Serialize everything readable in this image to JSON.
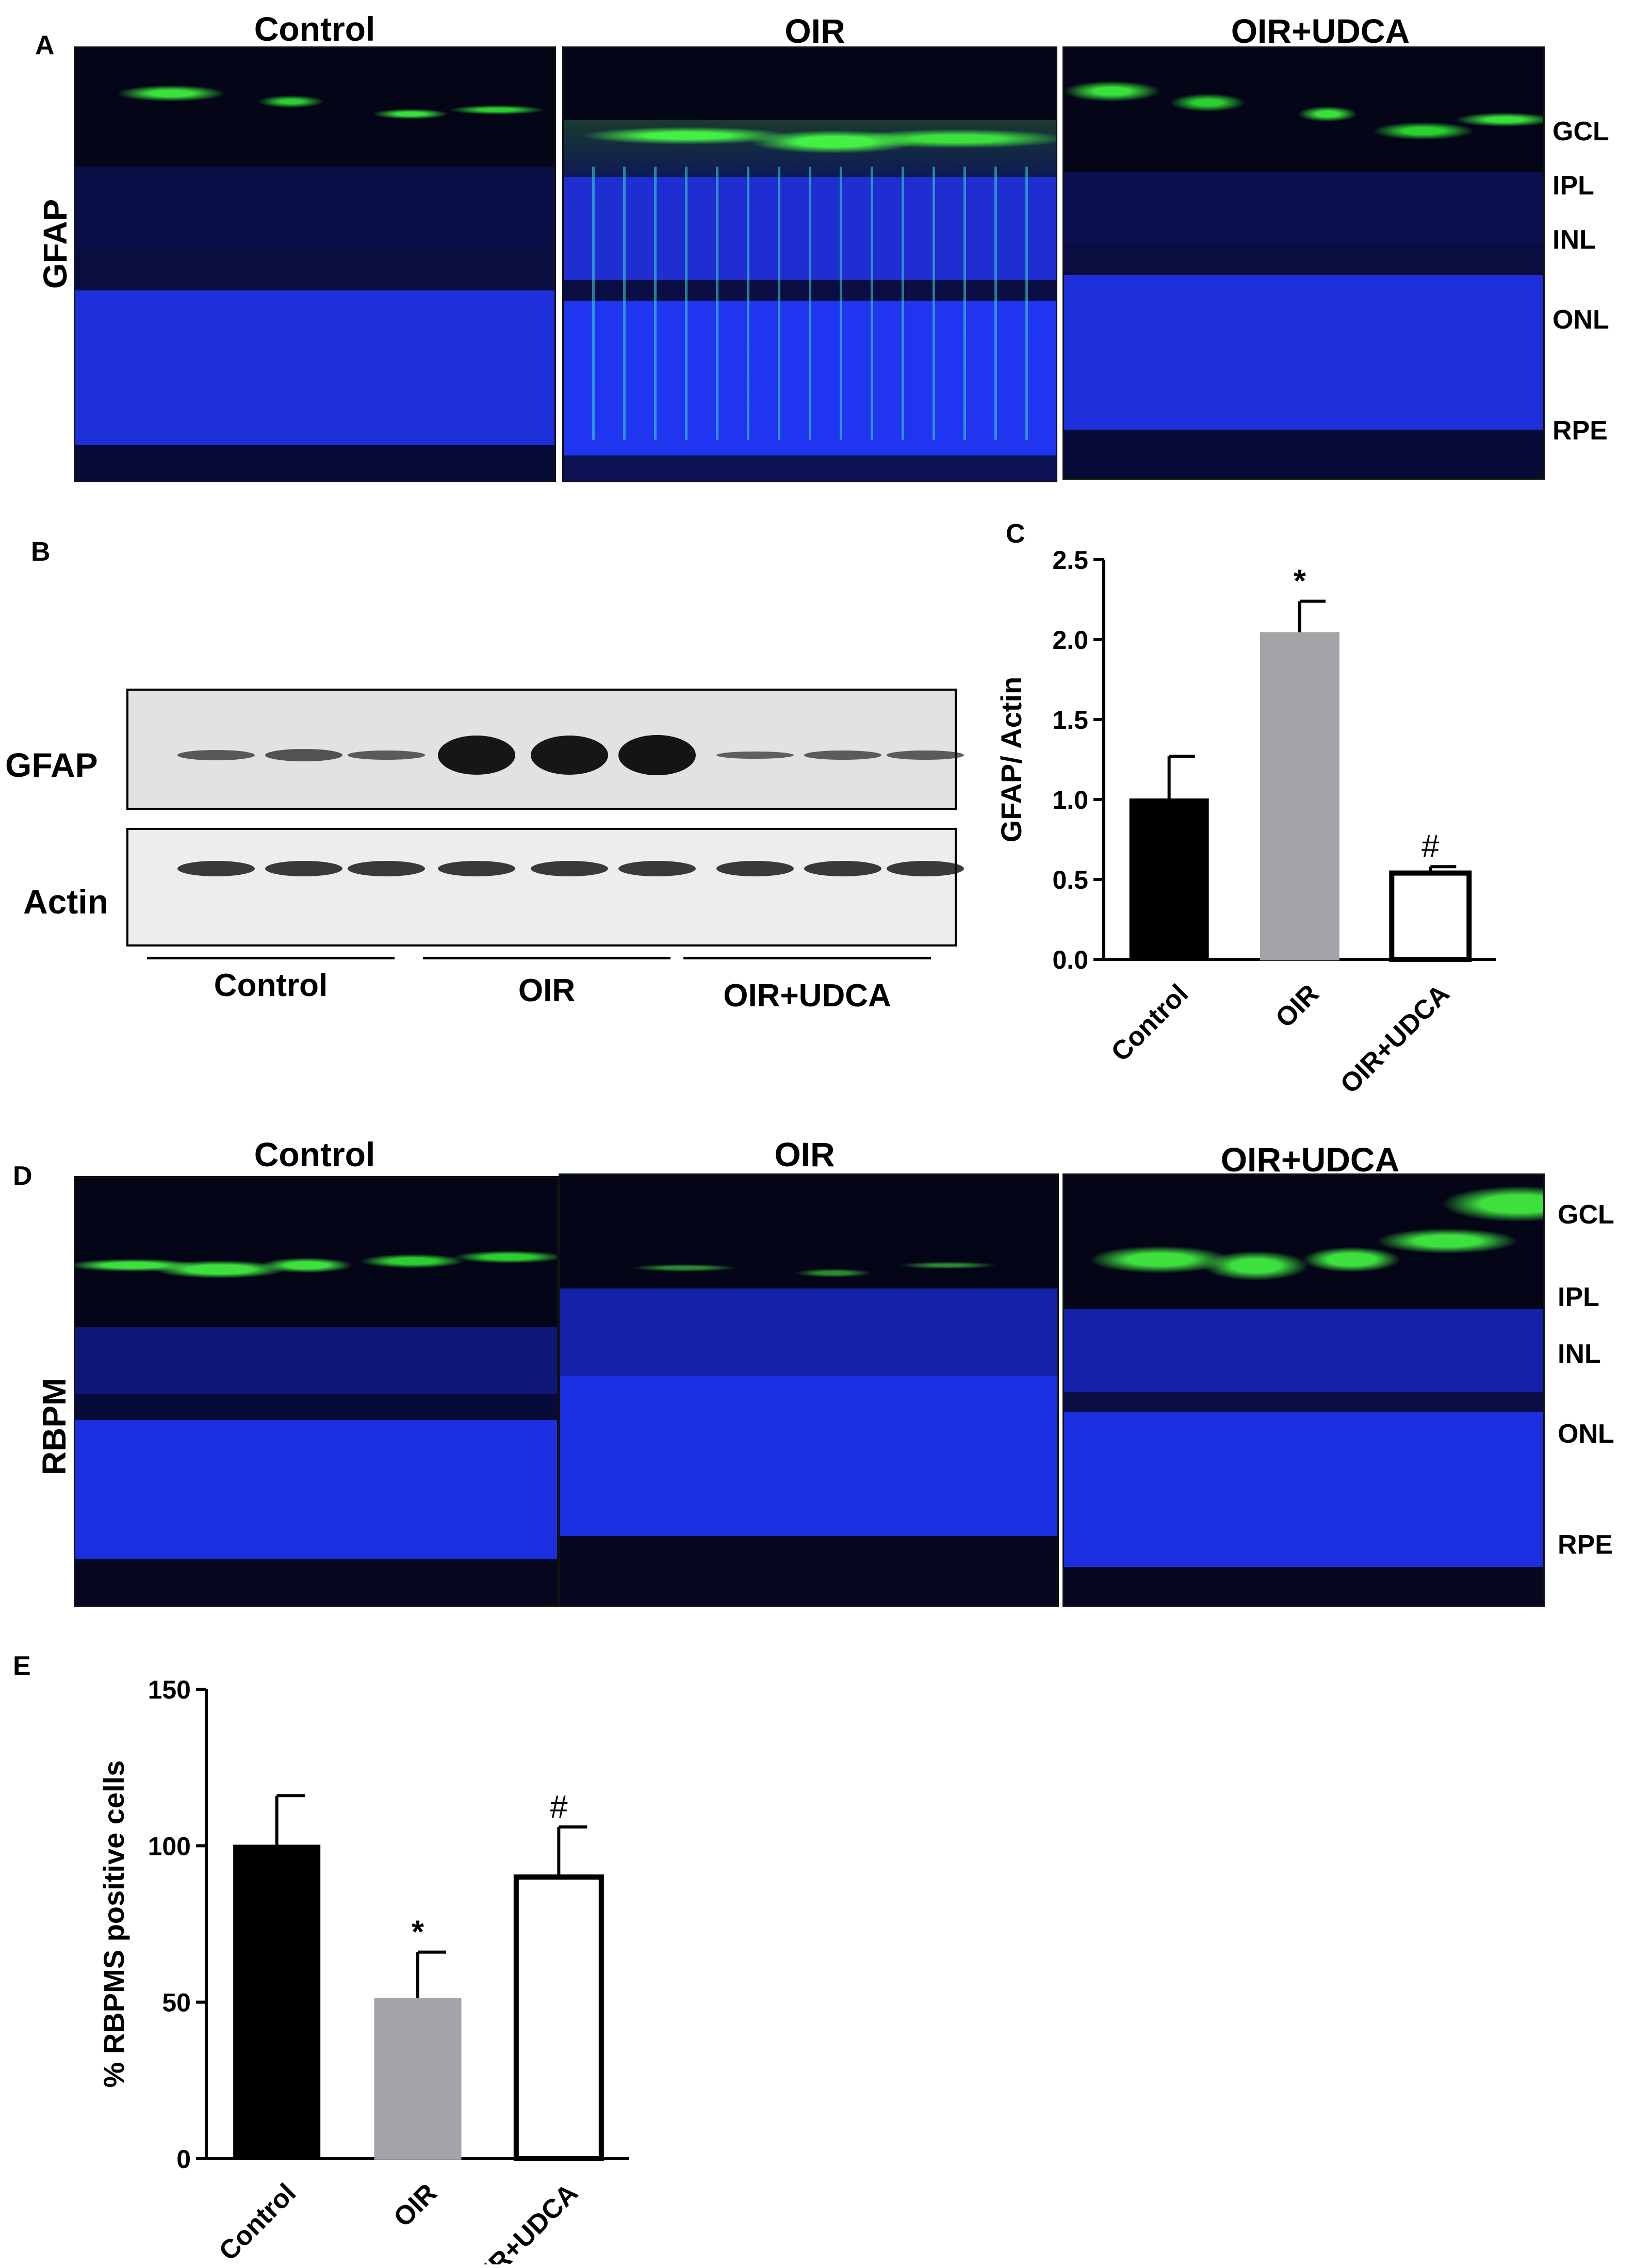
{
  "panels": {
    "A": "A",
    "B": "B",
    "C": "C",
    "D": "D",
    "E": "E"
  },
  "conditions": [
    "Control",
    "OIR",
    "OIR+UDCA"
  ],
  "micro_rows": [
    {
      "label": "GFAP",
      "layers": [
        "GCL",
        "IPL",
        "INL",
        "ONL",
        "RPE"
      ]
    },
    {
      "label": "RBPM",
      "layers": [
        "GCL",
        "IPL",
        "INL",
        "ONL",
        "RPE"
      ]
    }
  ],
  "western": {
    "rows": [
      "GFAP",
      "Actin"
    ],
    "groups": [
      "Control",
      "OIR",
      "OIR+UDCA"
    ],
    "gfap_intensity": [
      0.25,
      0.3,
      0.22,
      0.95,
      0.95,
      0.98,
      0.18,
      0.22,
      0.22
    ],
    "actin_intensity": [
      0.6,
      0.6,
      0.6,
      0.6,
      0.6,
      0.6,
      0.6,
      0.6,
      0.6
    ]
  },
  "colors": {
    "control": "#000000",
    "oir": "#a3a3a8",
    "udca": "#ffffff",
    "nuclei": "#1a2cff",
    "stain": "#38e83a"
  },
  "chart_data": [
    {
      "type": "bar",
      "panel": "C",
      "categories": [
        "Control",
        "OIR",
        "OIR+UDCA"
      ],
      "values": [
        1.0,
        2.04,
        0.54
      ],
      "errors": [
        0.27,
        0.2,
        0.04
      ],
      "annotations": [
        "",
        "*",
        "#"
      ],
      "ylabel": "GFAP/ Actin",
      "ylim": [
        0,
        2.5
      ],
      "yticks": [
        "0.0",
        "0.5",
        "1.0",
        "1.5",
        "2.0",
        "2.5"
      ]
    },
    {
      "type": "bar",
      "panel": "E",
      "categories": [
        "Control",
        "OIR",
        "OIR+UDCA"
      ],
      "values": [
        100,
        51,
        90
      ],
      "errors": [
        16,
        15,
        16
      ],
      "annotations": [
        "",
        "*",
        "#"
      ],
      "ylabel": "% RBPMS positive cells",
      "ylim": [
        0,
        150
      ],
      "yticks": [
        "0",
        "50",
        "100",
        "150"
      ]
    }
  ]
}
